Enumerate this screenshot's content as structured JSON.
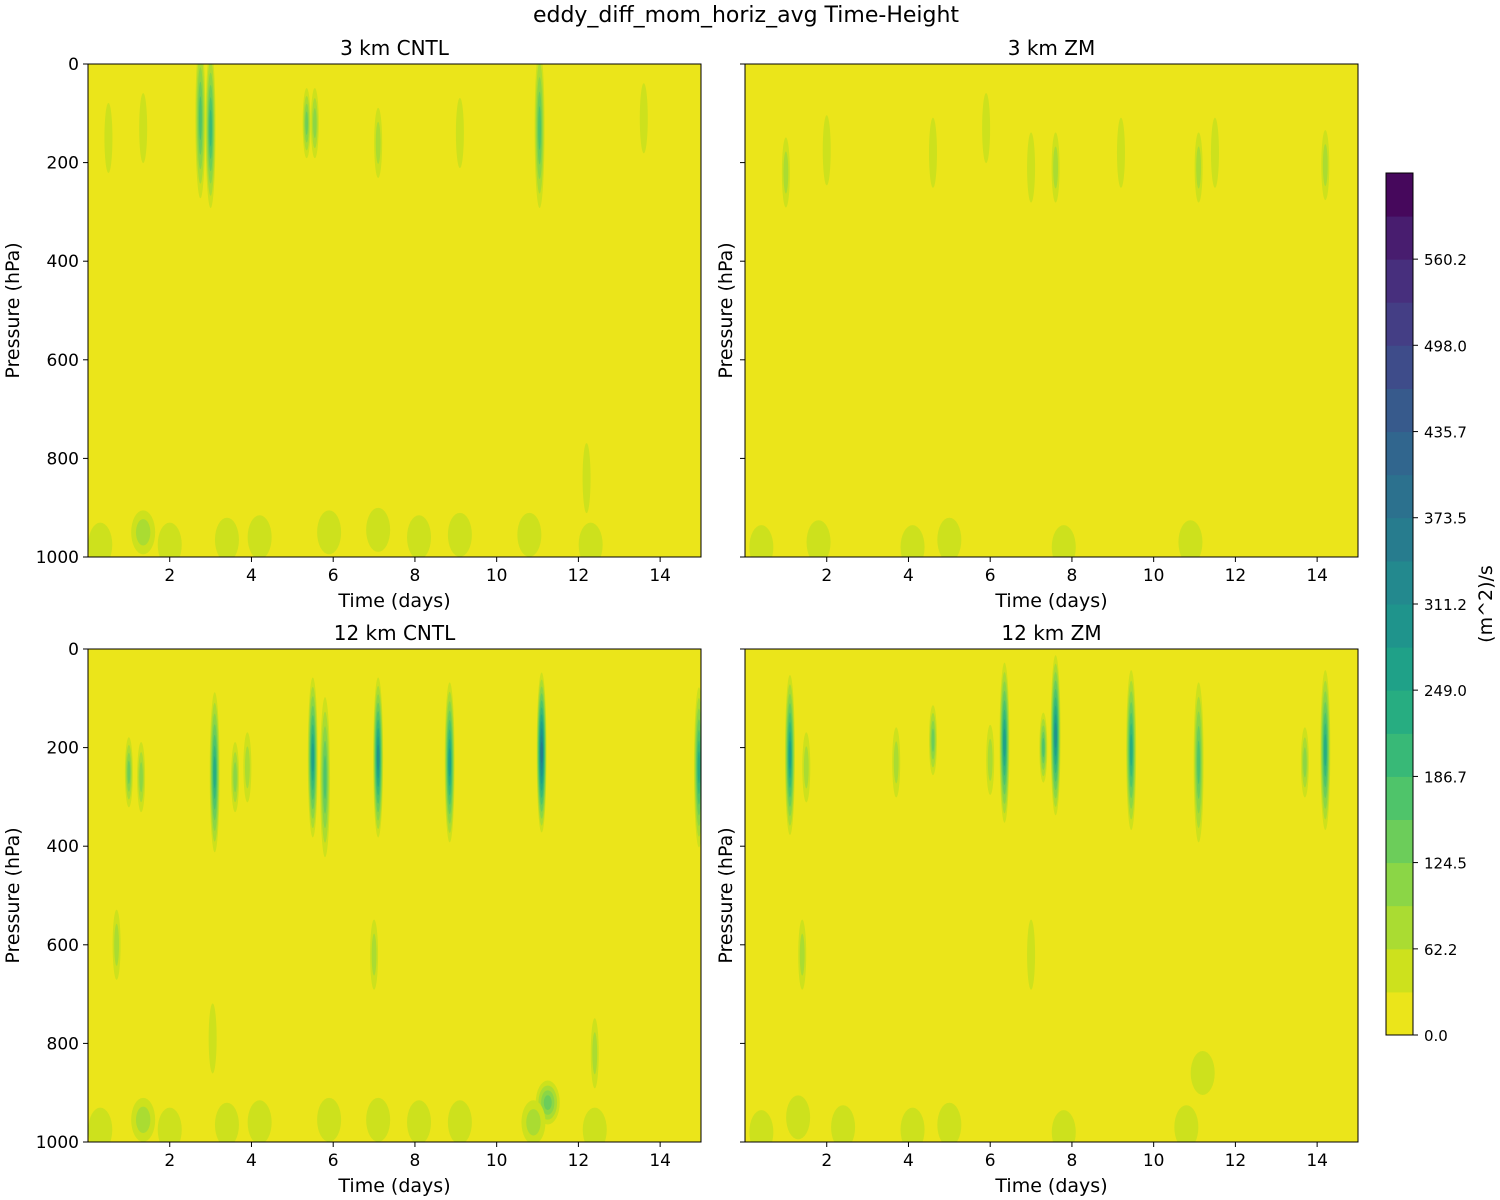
{
  "figure": {
    "title": "eddy_diff_mom_horiz_avg Time-Height"
  },
  "colorbar": {
    "label": "(m^2)/s",
    "tick_labels": [
      "0.0",
      "62.2",
      "124.5",
      "186.7",
      "249.0",
      "311.2",
      "373.5",
      "435.7",
      "498.0",
      "560.2"
    ],
    "tick_values": [
      0.0,
      62.2,
      124.5,
      186.7,
      249.0,
      311.2,
      373.5,
      435.7,
      498.0,
      560.2
    ],
    "levels": [
      0,
      31.1,
      62.2,
      93.4,
      124.5,
      155.6,
      186.7,
      217.8,
      249.0,
      280.1,
      311.2,
      342.3,
      373.5,
      404.6,
      435.7,
      466.8,
      498.0,
      529.1,
      560.2,
      591.3
    ],
    "colors": [
      "#ebe51a",
      "#cde11d",
      "#aadc32",
      "#8bd646",
      "#6ccd5a",
      "#4fc46a",
      "#38b977",
      "#27ad81",
      "#1fa188",
      "#1f948c",
      "#23898e",
      "#277c8e",
      "#2c718e",
      "#31668e",
      "#375a8c",
      "#3e4c8a",
      "#443e85",
      "#472f7d",
      "#481d6f",
      "#46085c"
    ]
  },
  "chart_data": [
    {
      "type": "heatmap",
      "title": "3 km CNTL",
      "xlabel": "Time (days)",
      "ylabel": "Pressure (hPa)",
      "xlim": [
        0,
        15
      ],
      "ylim": [
        1000,
        0
      ],
      "xticks": [
        2,
        4,
        6,
        8,
        10,
        12,
        14
      ],
      "yticks": [
        0,
        200,
        400,
        600,
        800,
        1000
      ],
      "background_value": 15,
      "features": [
        {
          "x": 0.5,
          "p": 150,
          "value": 45
        },
        {
          "x": 1.35,
          "p": 130,
          "value": 40
        },
        {
          "x": 2.75,
          "p": 110,
          "value": 160
        },
        {
          "x": 3.0,
          "p": 130,
          "value": 175
        },
        {
          "x": 5.35,
          "p": 120,
          "value": 110
        },
        {
          "x": 5.55,
          "p": 120,
          "value": 90
        },
        {
          "x": 7.1,
          "p": 160,
          "value": 60
        },
        {
          "x": 9.1,
          "p": 140,
          "value": 45
        },
        {
          "x": 11.05,
          "p": 130,
          "value": 155
        },
        {
          "x": 13.6,
          "p": 110,
          "value": 35
        },
        {
          "x": 12.2,
          "p": 840,
          "value": 40
        },
        {
          "x": 0.3,
          "p": 975,
          "value": 40
        },
        {
          "x": 1.35,
          "p": 950,
          "value": 70
        },
        {
          "x": 2.0,
          "p": 975,
          "value": 35
        },
        {
          "x": 3.4,
          "p": 965,
          "value": 40
        },
        {
          "x": 4.2,
          "p": 960,
          "value": 40
        },
        {
          "x": 5.9,
          "p": 950,
          "value": 45
        },
        {
          "x": 7.1,
          "p": 945,
          "value": 45
        },
        {
          "x": 8.1,
          "p": 960,
          "value": 40
        },
        {
          "x": 9.1,
          "p": 955,
          "value": 40
        },
        {
          "x": 10.8,
          "p": 955,
          "value": 45
        },
        {
          "x": 12.3,
          "p": 975,
          "value": 35
        }
      ]
    },
    {
      "type": "heatmap",
      "title": "3 km ZM",
      "xlabel": "Time (days)",
      "ylabel": "Pressure (hPa)",
      "xlim": [
        0,
        15
      ],
      "ylim": [
        1000,
        0
      ],
      "xticks": [
        2,
        4,
        6,
        8,
        10,
        12,
        14
      ],
      "yticks": [
        0,
        200,
        400,
        600,
        800,
        1000
      ],
      "background_value": 15,
      "features": [
        {
          "x": 1.0,
          "p": 220,
          "value": 65
        },
        {
          "x": 2.0,
          "p": 175,
          "value": 45
        },
        {
          "x": 4.6,
          "p": 180,
          "value": 45
        },
        {
          "x": 5.9,
          "p": 130,
          "value": 35
        },
        {
          "x": 7.0,
          "p": 210,
          "value": 40
        },
        {
          "x": 7.6,
          "p": 210,
          "value": 50
        },
        {
          "x": 9.2,
          "p": 180,
          "value": 40
        },
        {
          "x": 11.1,
          "p": 210,
          "value": 60
        },
        {
          "x": 11.5,
          "p": 180,
          "value": 45
        },
        {
          "x": 14.2,
          "p": 205,
          "value": 65
        },
        {
          "x": 0.4,
          "p": 980,
          "value": 35
        },
        {
          "x": 1.8,
          "p": 970,
          "value": 40
        },
        {
          "x": 4.1,
          "p": 980,
          "value": 35
        },
        {
          "x": 5.0,
          "p": 965,
          "value": 40
        },
        {
          "x": 7.8,
          "p": 980,
          "value": 35
        },
        {
          "x": 10.9,
          "p": 970,
          "value": 45
        }
      ]
    },
    {
      "type": "heatmap",
      "title": "12 km CNTL",
      "xlabel": "Time (days)",
      "ylabel": "Pressure (hPa)",
      "xlim": [
        0,
        15
      ],
      "ylim": [
        1000,
        0
      ],
      "xticks": [
        2,
        4,
        6,
        8,
        10,
        12,
        14
      ],
      "yticks": [
        0,
        200,
        400,
        600,
        800,
        1000
      ],
      "background_value": 15,
      "features": [
        {
          "x": 1.0,
          "p": 250,
          "value": 110
        },
        {
          "x": 1.3,
          "p": 260,
          "value": 85
        },
        {
          "x": 0.7,
          "p": 600,
          "value": 55
        },
        {
          "x": 3.1,
          "p": 250,
          "value": 220
        },
        {
          "x": 3.6,
          "p": 260,
          "value": 90
        },
        {
          "x": 3.9,
          "p": 240,
          "value": 70
        },
        {
          "x": 5.5,
          "p": 220,
          "value": 260
        },
        {
          "x": 5.8,
          "p": 260,
          "value": 170
        },
        {
          "x": 7.1,
          "p": 220,
          "value": 280
        },
        {
          "x": 7.0,
          "p": 620,
          "value": 55
        },
        {
          "x": 8.85,
          "p": 230,
          "value": 240
        },
        {
          "x": 11.1,
          "p": 210,
          "value": 330
        },
        {
          "x": 11.25,
          "p": 920,
          "value": 130
        },
        {
          "x": 12.4,
          "p": 820,
          "value": 55
        },
        {
          "x": 3.05,
          "p": 790,
          "value": 45
        },
        {
          "x": 14.95,
          "p": 240,
          "value": 230
        },
        {
          "x": 0.3,
          "p": 975,
          "value": 40
        },
        {
          "x": 1.35,
          "p": 955,
          "value": 75
        },
        {
          "x": 2.0,
          "p": 975,
          "value": 35
        },
        {
          "x": 3.4,
          "p": 965,
          "value": 40
        },
        {
          "x": 4.2,
          "p": 960,
          "value": 40
        },
        {
          "x": 5.9,
          "p": 955,
          "value": 45
        },
        {
          "x": 7.1,
          "p": 955,
          "value": 45
        },
        {
          "x": 8.1,
          "p": 960,
          "value": 40
        },
        {
          "x": 9.1,
          "p": 960,
          "value": 40
        },
        {
          "x": 10.9,
          "p": 960,
          "value": 50
        },
        {
          "x": 12.4,
          "p": 975,
          "value": 35
        }
      ]
    },
    {
      "type": "heatmap",
      "title": "12 km ZM",
      "xlabel": "Time (days)",
      "ylabel": "Pressure (hPa)",
      "xlim": [
        0,
        15
      ],
      "ylim": [
        1000,
        0
      ],
      "xticks": [
        2,
        4,
        6,
        8,
        10,
        12,
        14
      ],
      "yticks": [
        0,
        200,
        400,
        600,
        800,
        1000
      ],
      "background_value": 15,
      "features": [
        {
          "x": 1.1,
          "p": 215,
          "value": 260
        },
        {
          "x": 1.5,
          "p": 240,
          "value": 60
        },
        {
          "x": 3.7,
          "p": 230,
          "value": 55
        },
        {
          "x": 4.6,
          "p": 185,
          "value": 130
        },
        {
          "x": 6.35,
          "p": 190,
          "value": 240
        },
        {
          "x": 6.0,
          "p": 225,
          "value": 70
        },
        {
          "x": 7.6,
          "p": 175,
          "value": 280
        },
        {
          "x": 7.3,
          "p": 200,
          "value": 150
        },
        {
          "x": 9.45,
          "p": 205,
          "value": 220
        },
        {
          "x": 11.1,
          "p": 230,
          "value": 170
        },
        {
          "x": 14.2,
          "p": 205,
          "value": 230
        },
        {
          "x": 13.7,
          "p": 230,
          "value": 80
        },
        {
          "x": 1.4,
          "p": 620,
          "value": 50
        },
        {
          "x": 7.0,
          "p": 620,
          "value": 40
        },
        {
          "x": 11.2,
          "p": 860,
          "value": 45
        },
        {
          "x": 0.4,
          "p": 980,
          "value": 35
        },
        {
          "x": 1.3,
          "p": 950,
          "value": 45
        },
        {
          "x": 2.4,
          "p": 970,
          "value": 35
        },
        {
          "x": 4.1,
          "p": 975,
          "value": 35
        },
        {
          "x": 5.0,
          "p": 965,
          "value": 40
        },
        {
          "x": 7.8,
          "p": 980,
          "value": 35
        },
        {
          "x": 10.8,
          "p": 970,
          "value": 45
        }
      ]
    }
  ]
}
